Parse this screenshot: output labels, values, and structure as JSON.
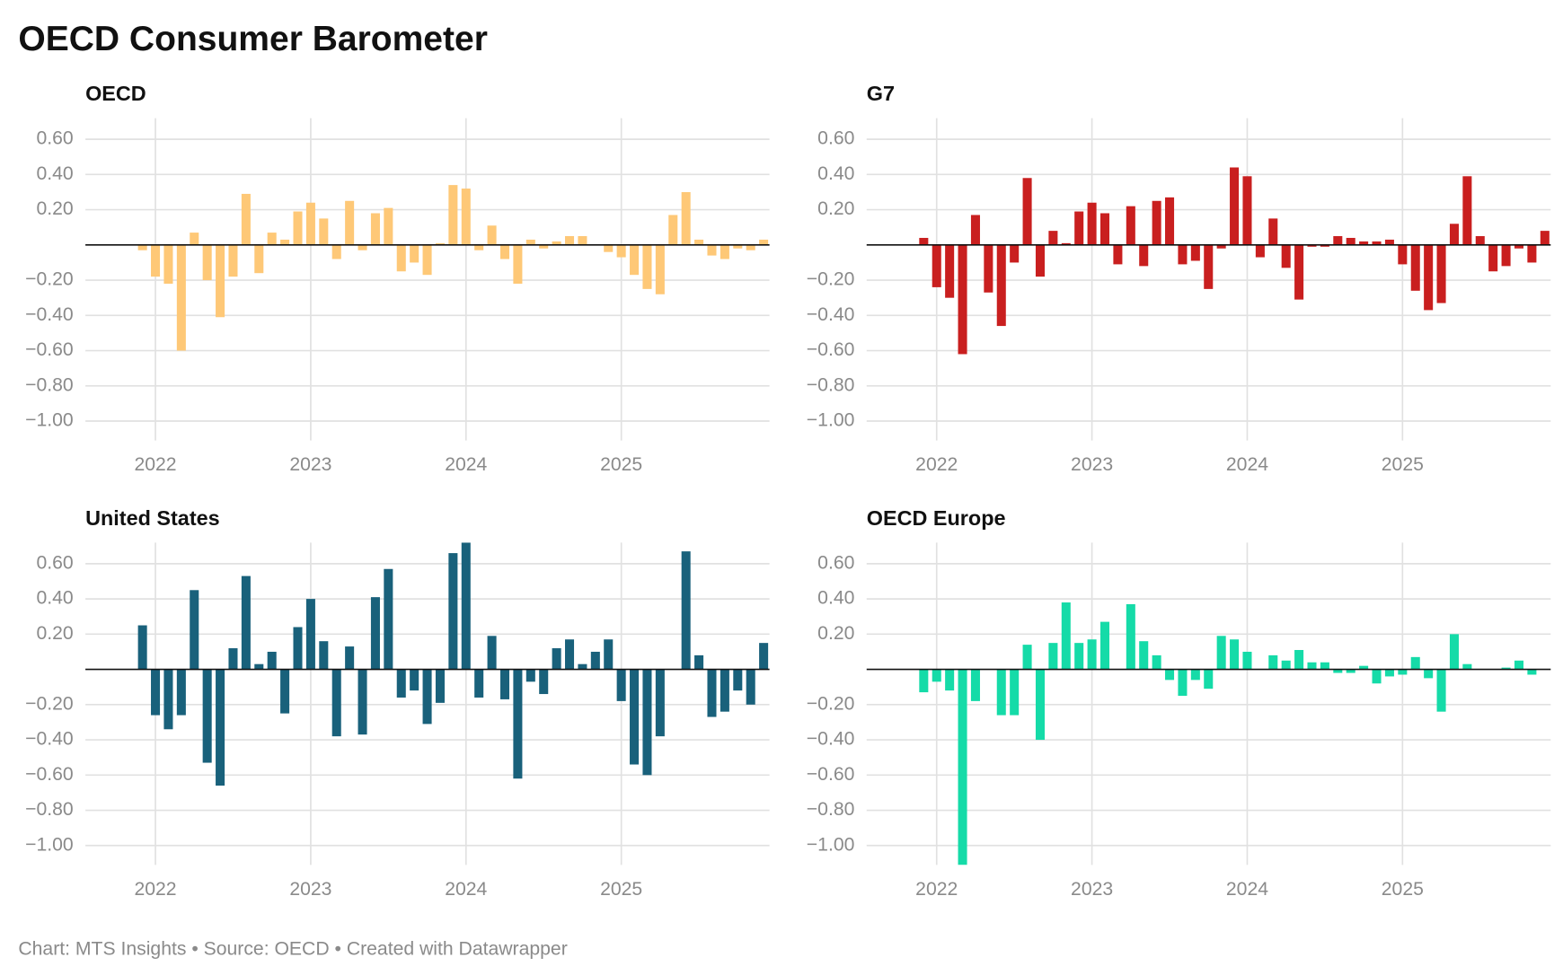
{
  "title": "OECD Consumer Barometer",
  "footer": "Chart: MTS Insights • Source: OECD • Created with Datawrapper",
  "chart_data": [
    {
      "type": "bar",
      "title": "OECD",
      "color": "#fec877",
      "categories": [
        null,
        "2022",
        null,
        null,
        null,
        null,
        null,
        null,
        null,
        null,
        null,
        null,
        null,
        "2023",
        null,
        null,
        null,
        null,
        null,
        null,
        null,
        null,
        null,
        null,
        null,
        "2024",
        null,
        null,
        null,
        null,
        null,
        null,
        null,
        null,
        null,
        null,
        null,
        "2025",
        null,
        null,
        null,
        null,
        null,
        null,
        null,
        null,
        null,
        null,
        null
      ],
      "values": [
        -0.03,
        -0.18,
        -0.22,
        -0.6,
        0.07,
        -0.2,
        -0.41,
        -0.18,
        0.29,
        -0.16,
        0.07,
        0.03,
        0.19,
        0.24,
        0.15,
        -0.08,
        0.25,
        -0.03,
        0.18,
        0.21,
        -0.15,
        -0.1,
        -0.17,
        0.01,
        0.34,
        0.32,
        -0.03,
        0.11,
        -0.08,
        -0.22,
        0.03,
        -0.02,
        0.02,
        0.05,
        0.05,
        0.0,
        -0.04,
        -0.07,
        -0.17,
        -0.25,
        -0.28,
        0.17,
        0.3,
        0.03,
        -0.06,
        -0.08,
        -0.02,
        -0.03,
        0.03
      ],
      "ylim": [
        -1.11,
        0.72
      ],
      "yticks": [
        {
          "value": 0.6,
          "label": "0.60"
        },
        {
          "value": 0.4,
          "label": "0.40"
        },
        {
          "value": 0.2,
          "label": "0.20"
        },
        {
          "value": -0.2,
          "label": "−0.20"
        },
        {
          "value": -0.4,
          "label": "−0.40"
        },
        {
          "value": -0.6,
          "label": "−0.60"
        },
        {
          "value": -0.8,
          "label": "−0.80"
        },
        {
          "value": -1.0,
          "label": "−1.00"
        }
      ],
      "grid": true
    },
    {
      "type": "bar",
      "title": "G7",
      "color": "#c91f1f",
      "categories": [
        null,
        "2022",
        null,
        null,
        null,
        null,
        null,
        null,
        null,
        null,
        null,
        null,
        null,
        "2023",
        null,
        null,
        null,
        null,
        null,
        null,
        null,
        null,
        null,
        null,
        null,
        "2024",
        null,
        null,
        null,
        null,
        null,
        null,
        null,
        null,
        null,
        null,
        null,
        "2025",
        null,
        null,
        null,
        null,
        null,
        null,
        null,
        null,
        null,
        null,
        null
      ],
      "values": [
        0.04,
        -0.24,
        -0.3,
        -0.62,
        0.17,
        -0.27,
        -0.46,
        -0.1,
        0.38,
        -0.18,
        0.08,
        0.01,
        0.19,
        0.24,
        0.18,
        -0.11,
        0.22,
        -0.12,
        0.25,
        0.27,
        -0.11,
        -0.09,
        -0.25,
        -0.02,
        0.44,
        0.39,
        -0.07,
        0.15,
        -0.13,
        -0.31,
        -0.01,
        -0.01,
        0.05,
        0.04,
        0.02,
        0.02,
        0.03,
        -0.11,
        -0.26,
        -0.37,
        -0.33,
        0.12,
        0.39,
        0.05,
        -0.15,
        -0.12,
        -0.02,
        -0.1,
        0.08
      ],
      "ylim": [
        -1.11,
        0.72
      ],
      "yticks": [
        {
          "value": 0.6,
          "label": "0.60"
        },
        {
          "value": 0.4,
          "label": "0.40"
        },
        {
          "value": 0.2,
          "label": "0.20"
        },
        {
          "value": -0.2,
          "label": "−0.20"
        },
        {
          "value": -0.4,
          "label": "−0.40"
        },
        {
          "value": -0.6,
          "label": "−0.60"
        },
        {
          "value": -0.8,
          "label": "−0.80"
        },
        {
          "value": -1.0,
          "label": "−1.00"
        }
      ],
      "grid": true
    },
    {
      "type": "bar",
      "title": "United States",
      "color": "#19617b",
      "categories": [
        null,
        "2022",
        null,
        null,
        null,
        null,
        null,
        null,
        null,
        null,
        null,
        null,
        null,
        "2023",
        null,
        null,
        null,
        null,
        null,
        null,
        null,
        null,
        null,
        null,
        null,
        "2024",
        null,
        null,
        null,
        null,
        null,
        null,
        null,
        null,
        null,
        null,
        null,
        "2025",
        null,
        null,
        null,
        null,
        null,
        null,
        null,
        null,
        null,
        null,
        null
      ],
      "values": [
        0.25,
        -0.26,
        -0.34,
        -0.26,
        0.45,
        -0.53,
        -0.66,
        0.12,
        0.53,
        0.03,
        0.1,
        -0.25,
        0.24,
        0.4,
        0.16,
        -0.38,
        0.13,
        -0.37,
        0.41,
        0.57,
        -0.16,
        -0.12,
        -0.31,
        -0.19,
        0.66,
        0.72,
        -0.16,
        0.19,
        -0.17,
        -0.62,
        -0.07,
        -0.14,
        0.12,
        0.17,
        0.03,
        0.1,
        0.17,
        -0.18,
        -0.54,
        -0.6,
        -0.38,
        0.0,
        0.67,
        0.08,
        -0.27,
        -0.24,
        -0.12,
        -0.2,
        0.15
      ],
      "ylim": [
        -1.11,
        0.72
      ],
      "yticks": [
        {
          "value": 0.6,
          "label": "0.60"
        },
        {
          "value": 0.4,
          "label": "0.40"
        },
        {
          "value": 0.2,
          "label": "0.20"
        },
        {
          "value": -0.2,
          "label": "−0.20"
        },
        {
          "value": -0.4,
          "label": "−0.40"
        },
        {
          "value": -0.6,
          "label": "−0.60"
        },
        {
          "value": -0.8,
          "label": "−0.80"
        },
        {
          "value": -1.0,
          "label": "−1.00"
        }
      ],
      "grid": true
    },
    {
      "type": "bar",
      "title": "OECD Europe",
      "color": "#15dba8",
      "categories": [
        null,
        "2022",
        null,
        null,
        null,
        null,
        null,
        null,
        null,
        null,
        null,
        null,
        null,
        "2023",
        null,
        null,
        null,
        null,
        null,
        null,
        null,
        null,
        null,
        null,
        null,
        "2024",
        null,
        null,
        null,
        null,
        null,
        null,
        null,
        null,
        null,
        null,
        null,
        "2025",
        null,
        null,
        null,
        null,
        null,
        null,
        null,
        null,
        null,
        null,
        null
      ],
      "values": [
        -0.13,
        -0.07,
        -0.12,
        -1.11,
        -0.18,
        0.0,
        -0.26,
        -0.26,
        0.14,
        -0.4,
        0.15,
        0.38,
        0.15,
        0.17,
        0.27,
        0.0,
        0.37,
        0.16,
        0.08,
        -0.06,
        -0.15,
        -0.06,
        -0.11,
        0.19,
        0.17,
        0.1,
        0.0,
        0.08,
        0.05,
        0.11,
        0.04,
        0.04,
        -0.02,
        -0.02,
        0.02,
        -0.08,
        -0.04,
        -0.03,
        0.07,
        -0.05,
        -0.24,
        0.2,
        0.03,
        0.0,
        0.0,
        0.01,
        0.05,
        -0.03,
        null
      ],
      "ylim": [
        -1.11,
        0.72
      ],
      "yticks": [
        {
          "value": 0.6,
          "label": "0.60"
        },
        {
          "value": 0.4,
          "label": "0.40"
        },
        {
          "value": 0.2,
          "label": "0.20"
        },
        {
          "value": -0.2,
          "label": "−0.20"
        },
        {
          "value": -0.4,
          "label": "−0.40"
        },
        {
          "value": -0.6,
          "label": "−0.60"
        },
        {
          "value": -0.8,
          "label": "−0.80"
        },
        {
          "value": -1.0,
          "label": "−1.00"
        }
      ],
      "grid": true
    }
  ]
}
